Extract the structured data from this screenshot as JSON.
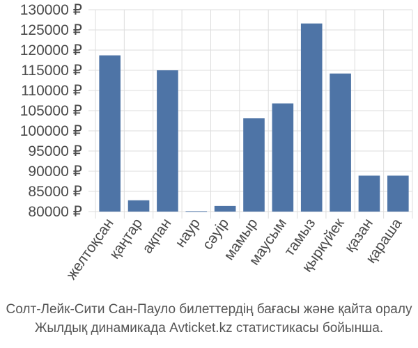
{
  "chart_data": {
    "type": "bar",
    "categories": [
      "желтоқсан",
      "қаңтар",
      "ақпан",
      "наур",
      "сәуір",
      "мамыр",
      "маусым",
      "тамыз",
      "қыркүйек",
      "қазан",
      "қараша"
    ],
    "values": [
      118700,
      82800,
      115000,
      80100,
      81400,
      103100,
      106800,
      126600,
      114200,
      88900,
      88900
    ],
    "y_ticks": [
      "80000 ₽",
      "85000 ₽",
      "90000 ₽",
      "95000 ₽",
      "100000 ₽",
      "105000 ₽",
      "110000 ₽",
      "115000 ₽",
      "120000 ₽",
      "125000 ₽",
      "130000 ₽"
    ],
    "ylim": [
      80000,
      130000
    ],
    "grid": true,
    "bar_color": "#4e74a6",
    "grid_color": "#dddddd"
  },
  "caption": {
    "line1": "Солт-Лейк-Сити Сан-Пауло билеттердің бағасы және қайта оралу",
    "line2": "Жылдық динамикада Avticket.kz статистикасы бойынша."
  }
}
